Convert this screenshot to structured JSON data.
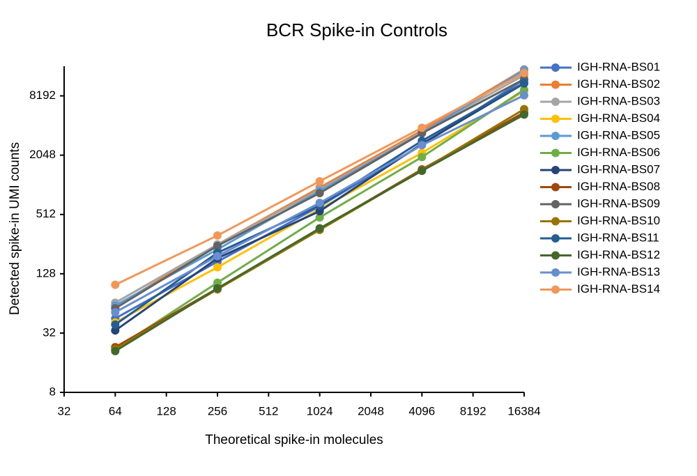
{
  "chart_data": {
    "type": "line",
    "title": "BCR Spike-in Controls",
    "x_label": "Theoretical spike-in molecules",
    "y_label": "Detected spike-in UMI counts",
    "x": [
      64,
      256,
      1024,
      4096,
      16384
    ],
    "xscale": "log2",
    "yscale": "log2",
    "xlim": [
      32,
      16384
    ],
    "ylim": [
      8,
      16384
    ],
    "xticks": [
      32,
      64,
      128,
      256,
      512,
      1024,
      2048,
      4096,
      8192,
      16384
    ],
    "yticks": [
      8,
      32,
      128,
      512,
      2048,
      8192
    ],
    "grid": false,
    "legend": "right",
    "series": [
      {
        "name": "IGH-RNA-BS01",
        "color": "#4472c4",
        "values": [
          45,
          170,
          620,
          2600,
          12000
        ]
      },
      {
        "name": "IGH-RNA-BS02",
        "color": "#ed7d31",
        "values": [
          59,
          254,
          960,
          3640,
          15200
        ]
      },
      {
        "name": "IGH-RNA-BS03",
        "color": "#a5a5a5",
        "values": [
          65,
          254,
          916,
          3520,
          13300
        ]
      },
      {
        "name": "IGH-RNA-BS04",
        "color": "#ffc000",
        "values": [
          41,
          149,
          580,
          2160,
          9150
        ]
      },
      {
        "name": "IGH-RNA-BS05",
        "color": "#5b9bd5",
        "values": [
          61,
          226,
          885,
          3420,
          15000
        ]
      },
      {
        "name": "IGH-RNA-BS06",
        "color": "#70ad47",
        "values": [
          22,
          104,
          478,
          1960,
          9470
        ]
      },
      {
        "name": "IGH-RNA-BS07",
        "color": "#264478",
        "values": [
          34,
          184,
          553,
          2670,
          10960
        ]
      },
      {
        "name": "IGH-RNA-BS08",
        "color": "#9e480e",
        "values": [
          23,
          91,
          363,
          1470,
          5550
        ]
      },
      {
        "name": "IGH-RNA-BS09",
        "color": "#636363",
        "values": [
          57,
          246,
          843,
          3420,
          12100
        ]
      },
      {
        "name": "IGH-RNA-BS10",
        "color": "#997300",
        "values": [
          22,
          89,
          357,
          1440,
          6000
        ]
      },
      {
        "name": "IGH-RNA-BS11",
        "color": "#255e91",
        "values": [
          39,
          209,
          630,
          2860,
          11100
        ]
      },
      {
        "name": "IGH-RNA-BS12",
        "color": "#43682b",
        "values": [
          21,
          91,
          370,
          1420,
          5290
        ]
      },
      {
        "name": "IGH-RNA-BS13",
        "color": "#698ed0",
        "values": [
          52,
          193,
          671,
          2590,
          8300
        ]
      },
      {
        "name": "IGH-RNA-BS14",
        "color": "#f1975a",
        "values": [
          99,
          313,
          1113,
          3880,
          13980
        ]
      }
    ]
  }
}
